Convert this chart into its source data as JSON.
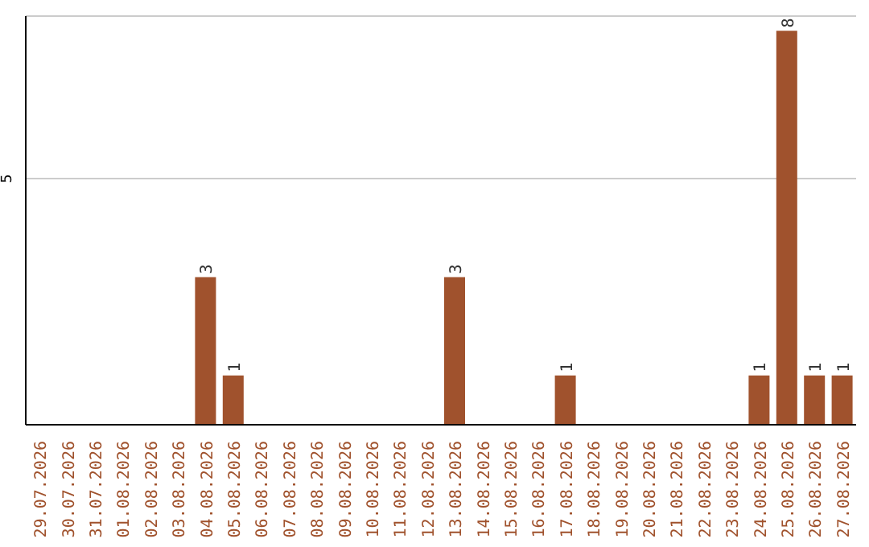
{
  "chart_data": {
    "type": "bar",
    "categories": [
      "29.07.2026",
      "30.07.2026",
      "31.07.2026",
      "01.08.2026",
      "02.08.2026",
      "03.08.2026",
      "04.08.2026",
      "05.08.2026",
      "06.08.2026",
      "07.08.2026",
      "08.08.2026",
      "09.08.2026",
      "10.08.2026",
      "11.08.2026",
      "12.08.2026",
      "13.08.2026",
      "14.08.2026",
      "15.08.2026",
      "16.08.2026",
      "17.08.2026",
      "18.08.2026",
      "19.08.2026",
      "20.08.2026",
      "21.08.2026",
      "22.08.2026",
      "23.08.2026",
      "24.08.2026",
      "25.08.2026",
      "26.08.2026",
      "27.08.2026"
    ],
    "values": [
      0,
      0,
      0,
      0,
      0,
      0,
      3,
      1,
      0,
      0,
      0,
      0,
      0,
      0,
      0,
      3,
      0,
      0,
      0,
      1,
      0,
      0,
      0,
      0,
      0,
      0,
      1,
      8,
      1,
      1
    ],
    "value_labels": [
      null,
      null,
      null,
      null,
      null,
      null,
      "3",
      "1",
      null,
      null,
      null,
      null,
      null,
      null,
      null,
      "3",
      null,
      null,
      null,
      "1",
      null,
      null,
      null,
      null,
      null,
      null,
      "1",
      "8",
      "1",
      "1"
    ],
    "color": "#a0522d",
    "ylim": [
      0,
      8.3
    ],
    "yticks": [
      5
    ],
    "grid": "y"
  }
}
